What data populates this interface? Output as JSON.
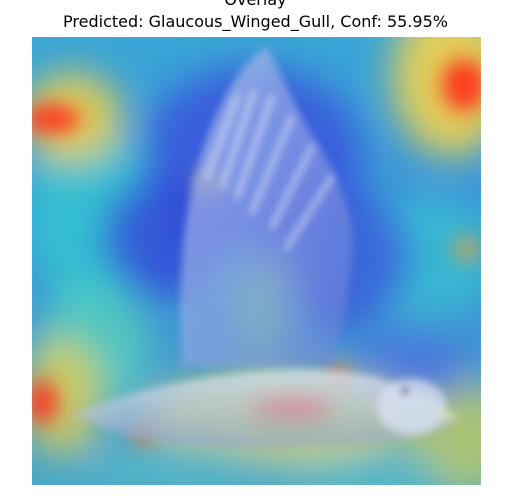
{
  "figure": {
    "title": "Overlay",
    "subtitle": "Predicted: Glaucous_Winged_Gull, Conf: 55.95%"
  },
  "image": {
    "subject": "gull in flight",
    "overlay_type": "heatmap"
  },
  "colors": {
    "background_base": "#2f8fd0",
    "heat_low": "#2b3fd8",
    "heat_mid": "#3fd0d8",
    "heat_high": "#ff2a1a",
    "heat_warm": "#ffd23a"
  }
}
